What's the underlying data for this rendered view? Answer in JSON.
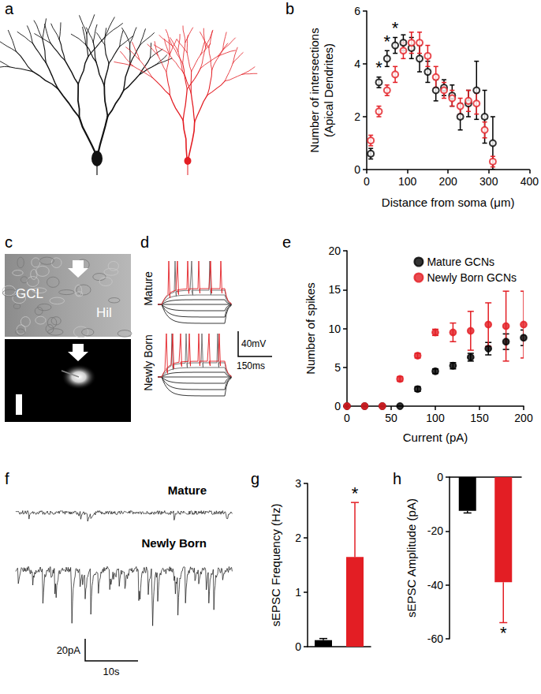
{
  "figure": {
    "panel_labels": [
      "a",
      "b",
      "c",
      "d",
      "e",
      "f",
      "g",
      "h"
    ],
    "c": {
      "regions": [
        "GCL",
        "Hil"
      ]
    },
    "d": {
      "rows": [
        "Mature",
        "Newly Born"
      ],
      "scale_bar": [
        "40mV",
        "150ms"
      ]
    },
    "f": {
      "rows": [
        "Mature",
        "Newly Born"
      ],
      "scale_bar": [
        "20pA",
        "10s"
      ]
    }
  },
  "chart_data": [
    {
      "type": "scatter",
      "x_label": "Distance from soma (μm)",
      "y_label": "Number of intersections\n(Apical Dendrites)",
      "x": [
        10,
        30,
        50,
        70,
        90,
        110,
        130,
        150,
        170,
        190,
        210,
        230,
        250,
        270,
        290,
        310
      ],
      "series": [
        {
          "color": "#000000",
          "marker": "emptyCircle",
          "values": [
            0.6,
            3.3,
            4.2,
            4.7,
            4.8,
            4.6,
            4.2,
            3.7,
            3.0,
            3.1,
            2.8,
            2.0,
            2.5,
            3.0,
            2.0,
            1.0
          ],
          "errors": [
            0.2,
            0.2,
            0.3,
            0.3,
            0.3,
            0.4,
            0.5,
            0.4,
            0.4,
            0.3,
            0.4,
            0.5,
            0.5,
            1.1,
            1.0,
            1.0
          ]
        },
        {
          "color": "#e31e24",
          "marker": "emptyCircle",
          "values": [
            1.1,
            2.2,
            3.0,
            3.6,
            4.5,
            4.8,
            4.8,
            4.3,
            3.5,
            3.0,
            2.7,
            2.4,
            2.6,
            2.5,
            1.5,
            0.3
          ],
          "errors": [
            0.2,
            0.2,
            0.2,
            0.3,
            0.3,
            0.4,
            0.4,
            0.4,
            0.4,
            0.3,
            0.3,
            0.3,
            0.4,
            0.4,
            0.3,
            0.2
          ]
        }
      ],
      "significance": [
        null,
        "*",
        "*",
        "*",
        null,
        null,
        null,
        null,
        null,
        null,
        null,
        null,
        null,
        null,
        null,
        null
      ],
      "xlim": [
        0,
        400
      ],
      "xticks": [
        0,
        100,
        200,
        300,
        400
      ],
      "ylim": [
        0,
        6
      ],
      "yticks": [
        0,
        2,
        4,
        6
      ],
      "grid": false
    },
    {
      "type": "scatter",
      "x_label": "Current (pA)",
      "y_label": "Number of spikes",
      "x": [
        0,
        20,
        40,
        60,
        80,
        100,
        120,
        140,
        160,
        180,
        200
      ],
      "series": [
        {
          "name": "Mature GCNs",
          "color": "#000000",
          "marker": "circle",
          "values": [
            0,
            0,
            0,
            0,
            2.2,
            4.5,
            5.2,
            6.3,
            7.4,
            8.3,
            8.8
          ],
          "errors": [
            0,
            0,
            0,
            0,
            0.3,
            0.3,
            0.4,
            0.5,
            0.8,
            1.0,
            1.0
          ]
        },
        {
          "name": "Newly Born GCNs",
          "color": "#e31e24",
          "marker": "circle",
          "values": [
            0,
            0,
            0,
            3.5,
            6.5,
            9.5,
            9.5,
            9.7,
            10.5,
            10.3,
            10.5
          ],
          "errors": [
            0,
            0,
            0,
            0.3,
            0.3,
            0.4,
            1.2,
            2.5,
            2.8,
            4.5,
            4.3
          ]
        }
      ],
      "legend": "top-right",
      "xlim": [
        0,
        200
      ],
      "xticks": [
        0,
        50,
        100,
        150,
        200
      ],
      "ylim": [
        0,
        20
      ],
      "yticks": [
        0,
        5,
        10,
        15,
        20
      ],
      "grid": false
    },
    {
      "type": "bar",
      "y_label": "sEPSC Frequency (Hz)",
      "categories": [
        null,
        null
      ],
      "values": [
        0.12,
        1.65
      ],
      "errors": [
        0.03,
        1.0
      ],
      "colors": [
        "#000000",
        "#e31e24"
      ],
      "significance": [
        null,
        "*"
      ],
      "ylim": [
        0,
        3
      ],
      "yticks": [
        0,
        1,
        2,
        3
      ],
      "tick_labels": "y",
      "grid": false
    },
    {
      "type": "bar",
      "y_label": "sEPSC Amplitude (pA)",
      "categories": [
        null,
        null
      ],
      "values": [
        -12.5,
        -39
      ],
      "errors": [
        0.8,
        15
      ],
      "colors": [
        "#000000",
        "#e31e24"
      ],
      "significance": [
        null,
        "*"
      ],
      "ylim": [
        -60,
        0
      ],
      "yticks": [
        0,
        -20,
        -40,
        -60
      ],
      "tick_labels": "y",
      "grid": false
    }
  ]
}
